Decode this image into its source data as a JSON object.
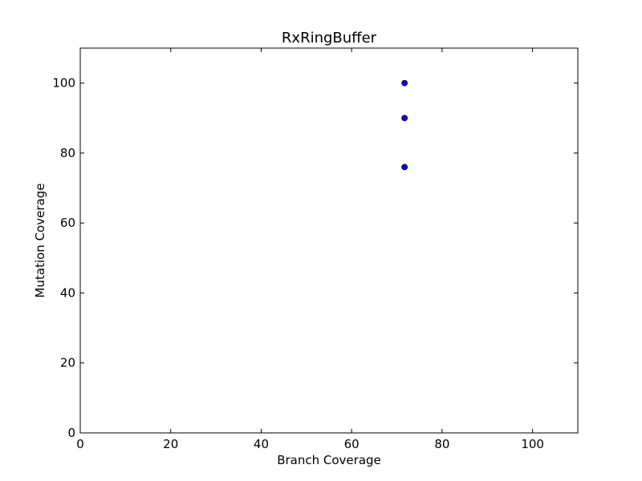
{
  "chart_data": {
    "type": "scatter",
    "title": "RxRingBuffer",
    "xlabel": "Branch Coverage",
    "ylabel": "Mutation Coverage",
    "xlim": [
      0,
      110
    ],
    "ylim": [
      0,
      110
    ],
    "xticks": [
      "0",
      "20",
      "40",
      "60",
      "80",
      "100"
    ],
    "yticks": [
      "0",
      "20",
      "40",
      "60",
      "80",
      "100"
    ],
    "grid": false,
    "legend": "none",
    "marker_color": "#0000ff",
    "marker_edge_color": "#000000",
    "series": [
      {
        "x": [
          71.7,
          71.7,
          71.7
        ],
        "y": [
          100,
          90,
          76
        ]
      }
    ]
  }
}
